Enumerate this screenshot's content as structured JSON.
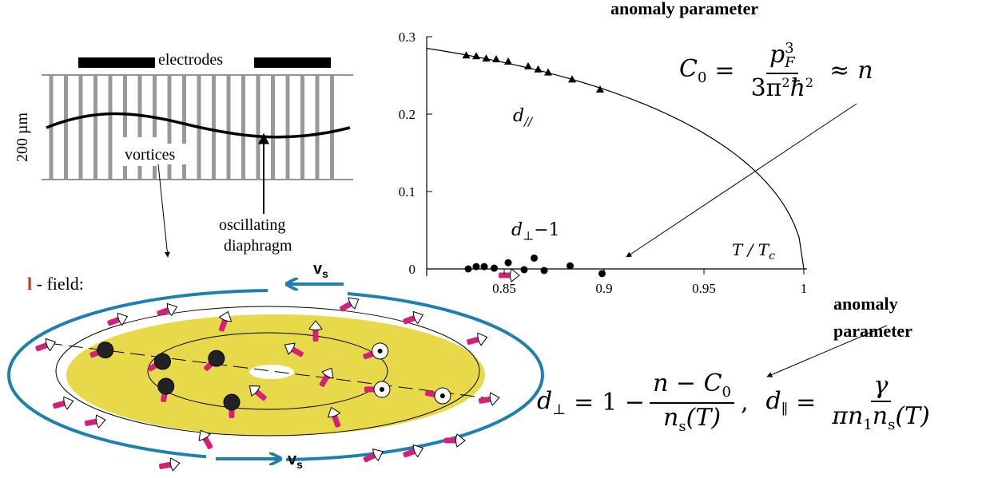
{
  "top_title": "anomaly parameter",
  "diagram": {
    "electrodes_label": "electrodes",
    "height_label": "200 µm",
    "vortices_label": "vortices",
    "diaphragm_label_line1": "oscillating",
    "diaphragm_label_line2": "diaphragm",
    "l_field_symbol": "l",
    "l_field_rest": " - field:",
    "vs_symbol": "v",
    "vs_subscript": "s"
  },
  "chart_data": {
    "type": "scatter",
    "xlim": [
      0.8,
      1.0
    ],
    "ylim": [
      0,
      0.3
    ],
    "x_ticks": [
      "0.85",
      "0.9",
      "0.95",
      "1"
    ],
    "y_ticks": [
      "0",
      "0.1",
      "0.2",
      "0.3"
    ],
    "x_label": "T / T",
    "x_label_sub": "c",
    "series": [
      {
        "name": "d//",
        "marker": "triangle",
        "x": [
          0.831,
          0.836,
          0.841,
          0.846,
          0.852,
          0.862,
          0.867,
          0.872,
          0.884,
          0.898
        ],
        "y": [
          0.276,
          0.275,
          0.272,
          0.271,
          0.268,
          0.262,
          0.258,
          0.254,
          0.245,
          0.232
        ]
      },
      {
        "name": "d⊥−1",
        "marker": "circle",
        "x": [
          0.832,
          0.836,
          0.84,
          0.845,
          0.852,
          0.86,
          0.865,
          0.87,
          0.883,
          0.899
        ],
        "y": [
          0.0,
          0.003,
          0.003,
          0.001,
          0.008,
          -0.001,
          0.014,
          -0.002,
          0.004,
          -0.006
        ]
      }
    ],
    "curve_label_par": "d",
    "curve_label_par_sub": "//",
    "curve_label_perp": "d",
    "curve_label_perp_sub": "⊥",
    "curve_label_perp_rest": "−1"
  },
  "formulas": {
    "c0_lhs": "C",
    "c0_lhs_sub": "0",
    "eq": "=",
    "c0_num": "p",
    "c0_num_sup": "3",
    "c0_num_sub": "F",
    "c0_den": "3π",
    "c0_den_sup1": "2",
    "c0_den_hbar": "ħ",
    "c0_den_sup2": "2",
    "approx": "≈",
    "c0_rhs": "n",
    "perp_lhs": "d",
    "perp_lhs_sub": "⊥",
    "perp_one": "1 −",
    "perp_num": "n − C",
    "perp_num_sub": "0",
    "perp_den": "n",
    "perp_den_sub": "s",
    "perp_den_arg": "(T)",
    "comma": ",",
    "par_lhs": "d",
    "par_lhs_sub": "∥",
    "par_num": "γ",
    "par_den": "πn",
    "par_den_sub1": "1",
    "par_den_mid": "n",
    "par_den_sub2": "s",
    "par_den_arg": "(T)"
  },
  "anomaly_label_line1": "anomaly",
  "anomaly_label_line2": "parameter",
  "colors": {
    "flow_arrow": "#1f7fb0",
    "disk": "#e8d94a",
    "l_vector": "#d4207a",
    "l_letter": "#c0392b"
  }
}
